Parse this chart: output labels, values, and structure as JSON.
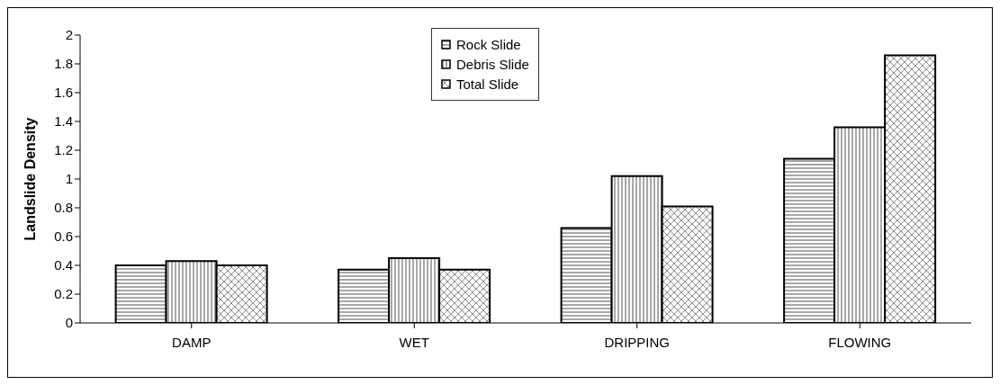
{
  "chart_data": {
    "type": "bar",
    "ylabel": "Landslide Density",
    "categories": [
      "DAMP",
      "WET",
      "DRIPPING",
      "FLOWING"
    ],
    "series": [
      {
        "name": "Rock Slide",
        "color": "#000000",
        "values": [
          0.4,
          0.37,
          0.66,
          1.14
        ]
      },
      {
        "name": "Debris Slide",
        "color": "#000000",
        "values": [
          0.43,
          0.45,
          1.02,
          1.36
        ]
      },
      {
        "name": "Total Slide",
        "color": "#000000",
        "values": [
          0.4,
          0.37,
          0.81,
          1.86
        ]
      }
    ],
    "ylim": [
      0,
      2
    ],
    "yticks": [
      0,
      0.2,
      0.4,
      0.6,
      0.8,
      1,
      1.2,
      1.4,
      1.6,
      1.8,
      2
    ],
    "grid": false,
    "legend": "top"
  }
}
